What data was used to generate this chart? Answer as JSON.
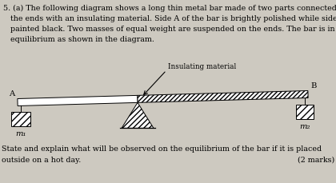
{
  "bg_color": "#cdc9c0",
  "text_color": "#000000",
  "title_lines": [
    "5. (a) The following diagram shows a long thin metal bar made of two parts connected at",
    "   the ends with an insulating material. Side A of the bar is brightly polished while side B is",
    "   painted black. Two masses of equal weight are suspended on the ends. The bar is in",
    "   equilibrium as shown in the diagram."
  ],
  "footer_line1": "State and explain what will be observed on the equilibrium of the bar if it is placed",
  "footer_line2": "outside on a hot day.",
  "marks_text": "(2 marks)",
  "label_A": "A",
  "label_B": "B",
  "label_m1": "m₁",
  "label_m2": "m₂",
  "insulating_label": "Insulating material",
  "font_size_body": 6.8,
  "font_size_labels": 7.2,
  "font_size_marks": 6.8
}
